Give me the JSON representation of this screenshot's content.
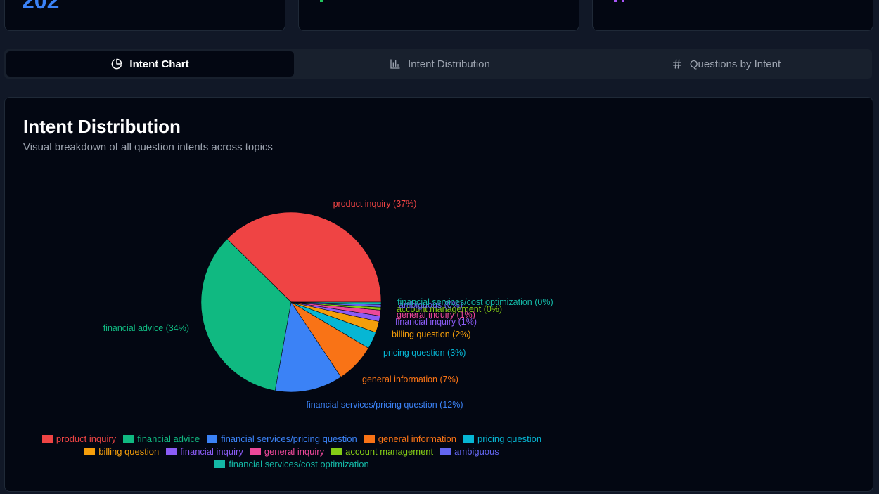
{
  "stats": [
    {
      "value": "202",
      "color": "#3b82f6"
    },
    {
      "value": "",
      "color": "#22c55e"
    },
    {
      "value": "",
      "color": "#a855f7"
    }
  ],
  "tabs": [
    {
      "label": "Intent Chart",
      "icon": "pie-chart-icon",
      "active": true
    },
    {
      "label": "Intent Distribution",
      "icon": "bar-chart-icon",
      "active": false
    },
    {
      "label": "Questions by Intent",
      "icon": "hash-icon",
      "active": false
    }
  ],
  "panel": {
    "title": "Intent Distribution",
    "subtitle": "Visual breakdown of all question intents across topics"
  },
  "chart_data": {
    "type": "pie",
    "title": "Intent Distribution",
    "subtitle": "Visual breakdown of all question intents across topics",
    "legend_placement": "bottom",
    "slices": [
      {
        "name": "product inquiry",
        "value": 37,
        "label": "product inquiry (37%)",
        "color": "#ef4444"
      },
      {
        "name": "financial advice",
        "value": 34,
        "label": "financial advice (34%)",
        "color": "#10b981"
      },
      {
        "name": "financial services/pricing question",
        "value": 12,
        "label": "financial services/pricing question (12%)",
        "color": "#3b82f6"
      },
      {
        "name": "general information",
        "value": 7,
        "label": "general information (7%)",
        "color": "#f97316"
      },
      {
        "name": "pricing question",
        "value": 3,
        "label": "pricing question (3%)",
        "color": "#06b6d4"
      },
      {
        "name": "billing question",
        "value": 2,
        "label": "billing question (2%)",
        "color": "#f59e0b"
      },
      {
        "name": "financial inquiry",
        "value": 1,
        "label": "financial inquiry (1%)",
        "color": "#8b5cf6"
      },
      {
        "name": "general inquiry",
        "value": 1,
        "label": "general inquiry (1%)",
        "color": "#ec4899"
      },
      {
        "name": "account management",
        "value": 0.5,
        "label": "account management (0%)",
        "color": "#84cc16"
      },
      {
        "name": "ambiguous",
        "value": 0.5,
        "label": "ambiguous (0%)",
        "color": "#6366f1"
      },
      {
        "name": "financial services/cost optimization",
        "value": 0.4,
        "label": "financial services/cost optimization (0%)",
        "color": "#14b8a6"
      }
    ]
  }
}
